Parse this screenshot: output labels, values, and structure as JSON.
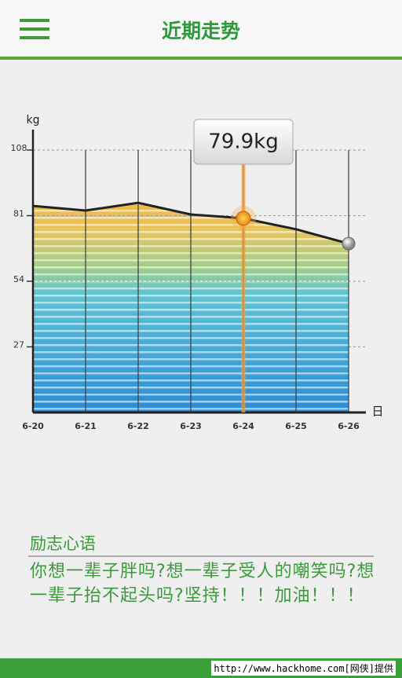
{
  "header": {
    "title": "近期走势"
  },
  "chart_data": {
    "type": "area",
    "categories": [
      "6-20",
      "6-21",
      "6-22",
      "6-23",
      "6-24",
      "6-25",
      "6-26"
    ],
    "values": [
      85.0,
      83.1,
      86.3,
      81.5,
      79.9,
      75.4,
      69.5
    ],
    "value_labels": [
      null,
      null,
      null,
      null,
      "79.9kg",
      null,
      null
    ],
    "ylabel": "kg",
    "xlabel": "日",
    "ylim": [
      0,
      108
    ],
    "yticks": [
      27,
      54,
      81,
      108
    ],
    "grid": true,
    "color": "#222222"
  },
  "motto": {
    "title": "励志心语",
    "text": "你想一辈子胖吗?想一辈子受人的嘲笑吗?想一辈子抬不起头吗?坚持！！！加油！！！"
  },
  "footer": {
    "text": "http://www.hackhome.com[网侠]提供"
  }
}
